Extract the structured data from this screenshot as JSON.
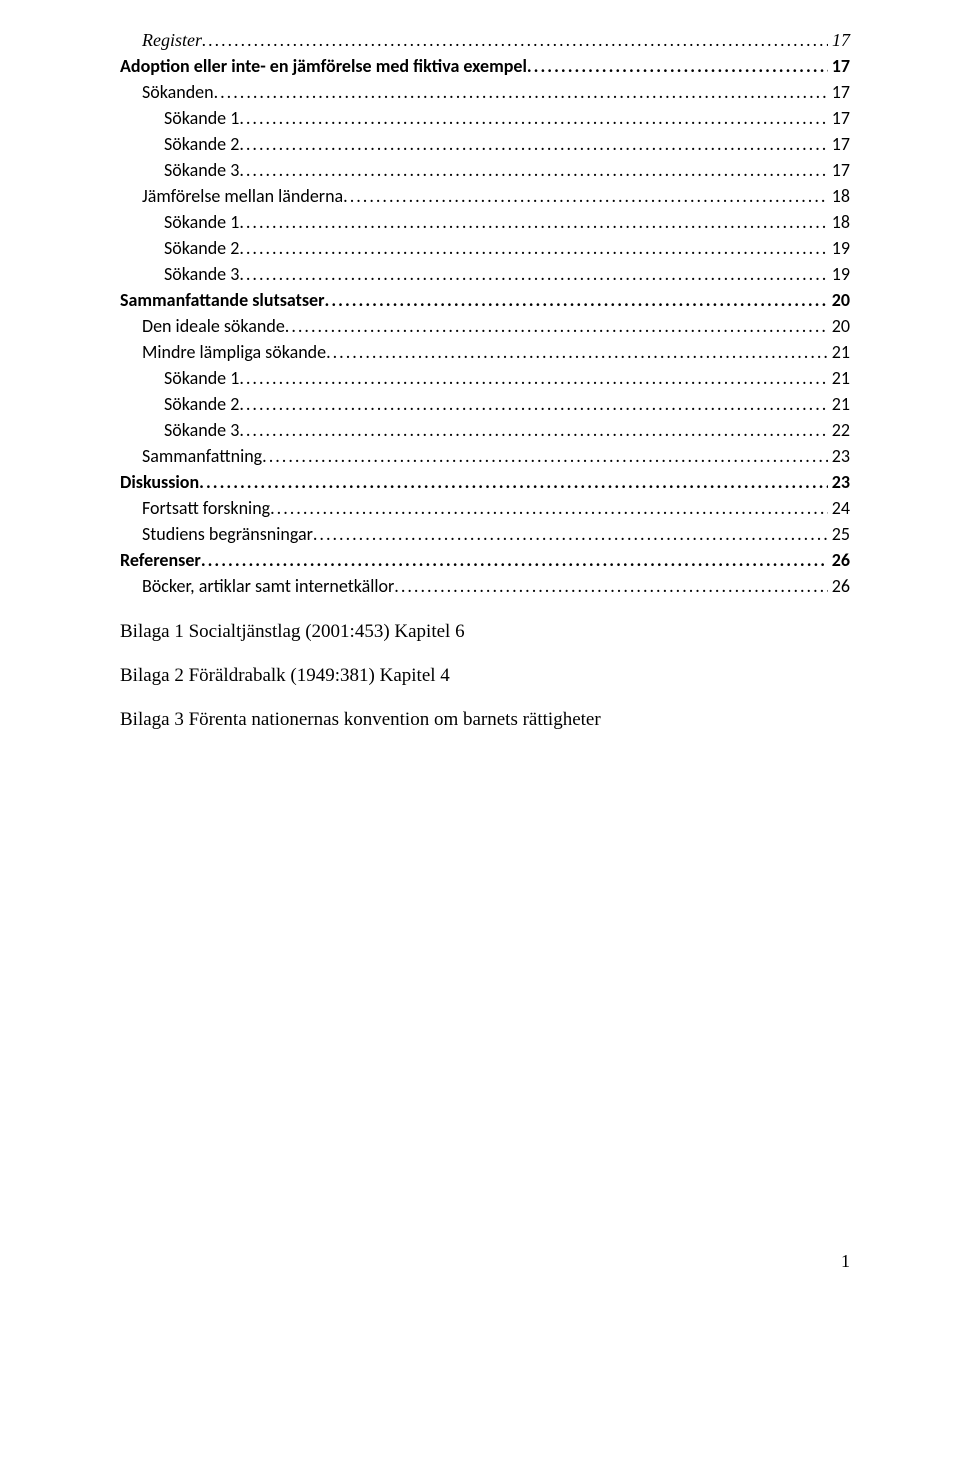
{
  "toc": [
    {
      "label": "Register",
      "page": "17",
      "cls": "lvl2-italic"
    },
    {
      "label": "Adoption eller inte- en jämförelse med fiktiva exempel",
      "page": "17",
      "cls": "lvl1"
    },
    {
      "label": "Sökanden",
      "page": "17",
      "cls": "lvl2"
    },
    {
      "label": "Sökande 1",
      "page": "17",
      "cls": "lvl3"
    },
    {
      "label": "Sökande 2",
      "page": "17",
      "cls": "lvl3"
    },
    {
      "label": "Sökande 3",
      "page": "17",
      "cls": "lvl3"
    },
    {
      "label": "Jämförelse mellan länderna",
      "page": "18",
      "cls": "lvl2"
    },
    {
      "label": "Sökande 1",
      "page": "18",
      "cls": "lvl3"
    },
    {
      "label": "Sökande 2",
      "page": "19",
      "cls": "lvl3"
    },
    {
      "label": "Sökande 3",
      "page": "19",
      "cls": "lvl3"
    },
    {
      "label": "Sammanfattande slutsatser",
      "page": "20",
      "cls": "lvl1"
    },
    {
      "label": "Den ideale sökande",
      "page": "20",
      "cls": "lvl2"
    },
    {
      "label": "Mindre lämpliga sökande",
      "page": "21",
      "cls": "lvl2"
    },
    {
      "label": "Sökande 1",
      "page": "21",
      "cls": "lvl3"
    },
    {
      "label": "Sökande 2",
      "page": "21",
      "cls": "lvl3"
    },
    {
      "label": "Sökande 3",
      "page": "22",
      "cls": "lvl3"
    },
    {
      "label": "Sammanfattning",
      "page": "23",
      "cls": "lvl2"
    },
    {
      "label": "Diskussion",
      "page": "23",
      "cls": "lvl1"
    },
    {
      "label": "Fortsatt forskning",
      "page": "24",
      "cls": "lvl2"
    },
    {
      "label": "Studiens begränsningar",
      "page": "25",
      "cls": "lvl2"
    },
    {
      "label": "Referenser",
      "page": "26",
      "cls": "lvl1"
    },
    {
      "label": "Böcker, artiklar samt internetkällor",
      "page": "26",
      "cls": "lvl2"
    }
  ],
  "body_lines": [
    "Bilaga 1 Socialtjänstlag (2001:453) Kapitel 6",
    "Bilaga 2 Föräldrabalk (1949:381) Kapitel 4",
    "Bilaga 3 Förenta nationernas konvention om barnets rättigheter"
  ],
  "page_number": "1"
}
